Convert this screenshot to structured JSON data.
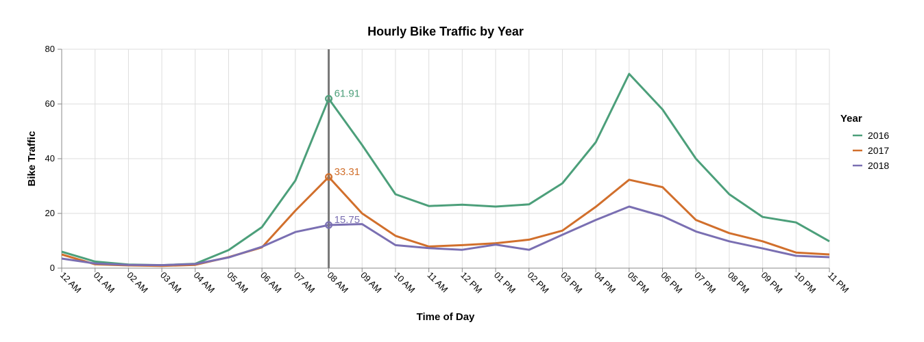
{
  "chart_data": {
    "type": "line",
    "title": "Hourly Bike Traffic by Year",
    "xlabel": "Time of Day",
    "ylabel": "Bike Traffic",
    "ylim": [
      0,
      80
    ],
    "yticks": [
      "0",
      "20",
      "40",
      "60",
      "80"
    ],
    "grid": true,
    "categories": [
      "12 AM",
      "01 AM",
      "02 AM",
      "03 AM",
      "04 AM",
      "05 AM",
      "06 AM",
      "07 AM",
      "08 AM",
      "09 AM",
      "10 AM",
      "11 AM",
      "12 PM",
      "01 PM",
      "02 PM",
      "03 PM",
      "04 PM",
      "05 PM",
      "06 PM",
      "07 PM",
      "08 PM",
      "09 PM",
      "10 PM",
      "11 PM"
    ],
    "legend": {
      "title": "Year",
      "position": "right"
    },
    "series": [
      {
        "name": "2016",
        "color": "#4c9f7a",
        "values": [
          6.0,
          2.4,
          1.3,
          1.1,
          1.6,
          6.6,
          15.0,
          32.0,
          61.91,
          45.0,
          27.0,
          22.7,
          23.2,
          22.5,
          23.3,
          31.0,
          46.0,
          71.0,
          58.0,
          40.0,
          27.0,
          18.7,
          16.7,
          9.8
        ]
      },
      {
        "name": "2017",
        "color": "#d16f2c",
        "values": [
          5.0,
          1.4,
          1.0,
          0.8,
          1.2,
          4.0,
          7.6,
          21.0,
          33.31,
          20.0,
          11.8,
          7.9,
          8.4,
          9.1,
          10.4,
          13.7,
          22.4,
          32.3,
          29.6,
          17.6,
          12.8,
          9.8,
          5.7,
          5.0
        ]
      },
      {
        "name": "2018",
        "color": "#7a6fb2",
        "values": [
          3.5,
          1.7,
          1.2,
          1.1,
          1.5,
          3.9,
          7.8,
          13.2,
          15.75,
          16.1,
          8.4,
          7.3,
          6.7,
          8.6,
          6.7,
          12.2,
          17.6,
          22.5,
          19.0,
          13.4,
          9.8,
          7.2,
          4.5,
          4.0
        ]
      }
    ],
    "annotations": [
      {
        "x": "08 AM",
        "series": "2016",
        "label": "61.91"
      },
      {
        "x": "08 AM",
        "series": "2017",
        "label": "33.31"
      },
      {
        "x": "08 AM",
        "series": "2018",
        "label": "15.75"
      }
    ],
    "rule_at": "08 AM"
  }
}
